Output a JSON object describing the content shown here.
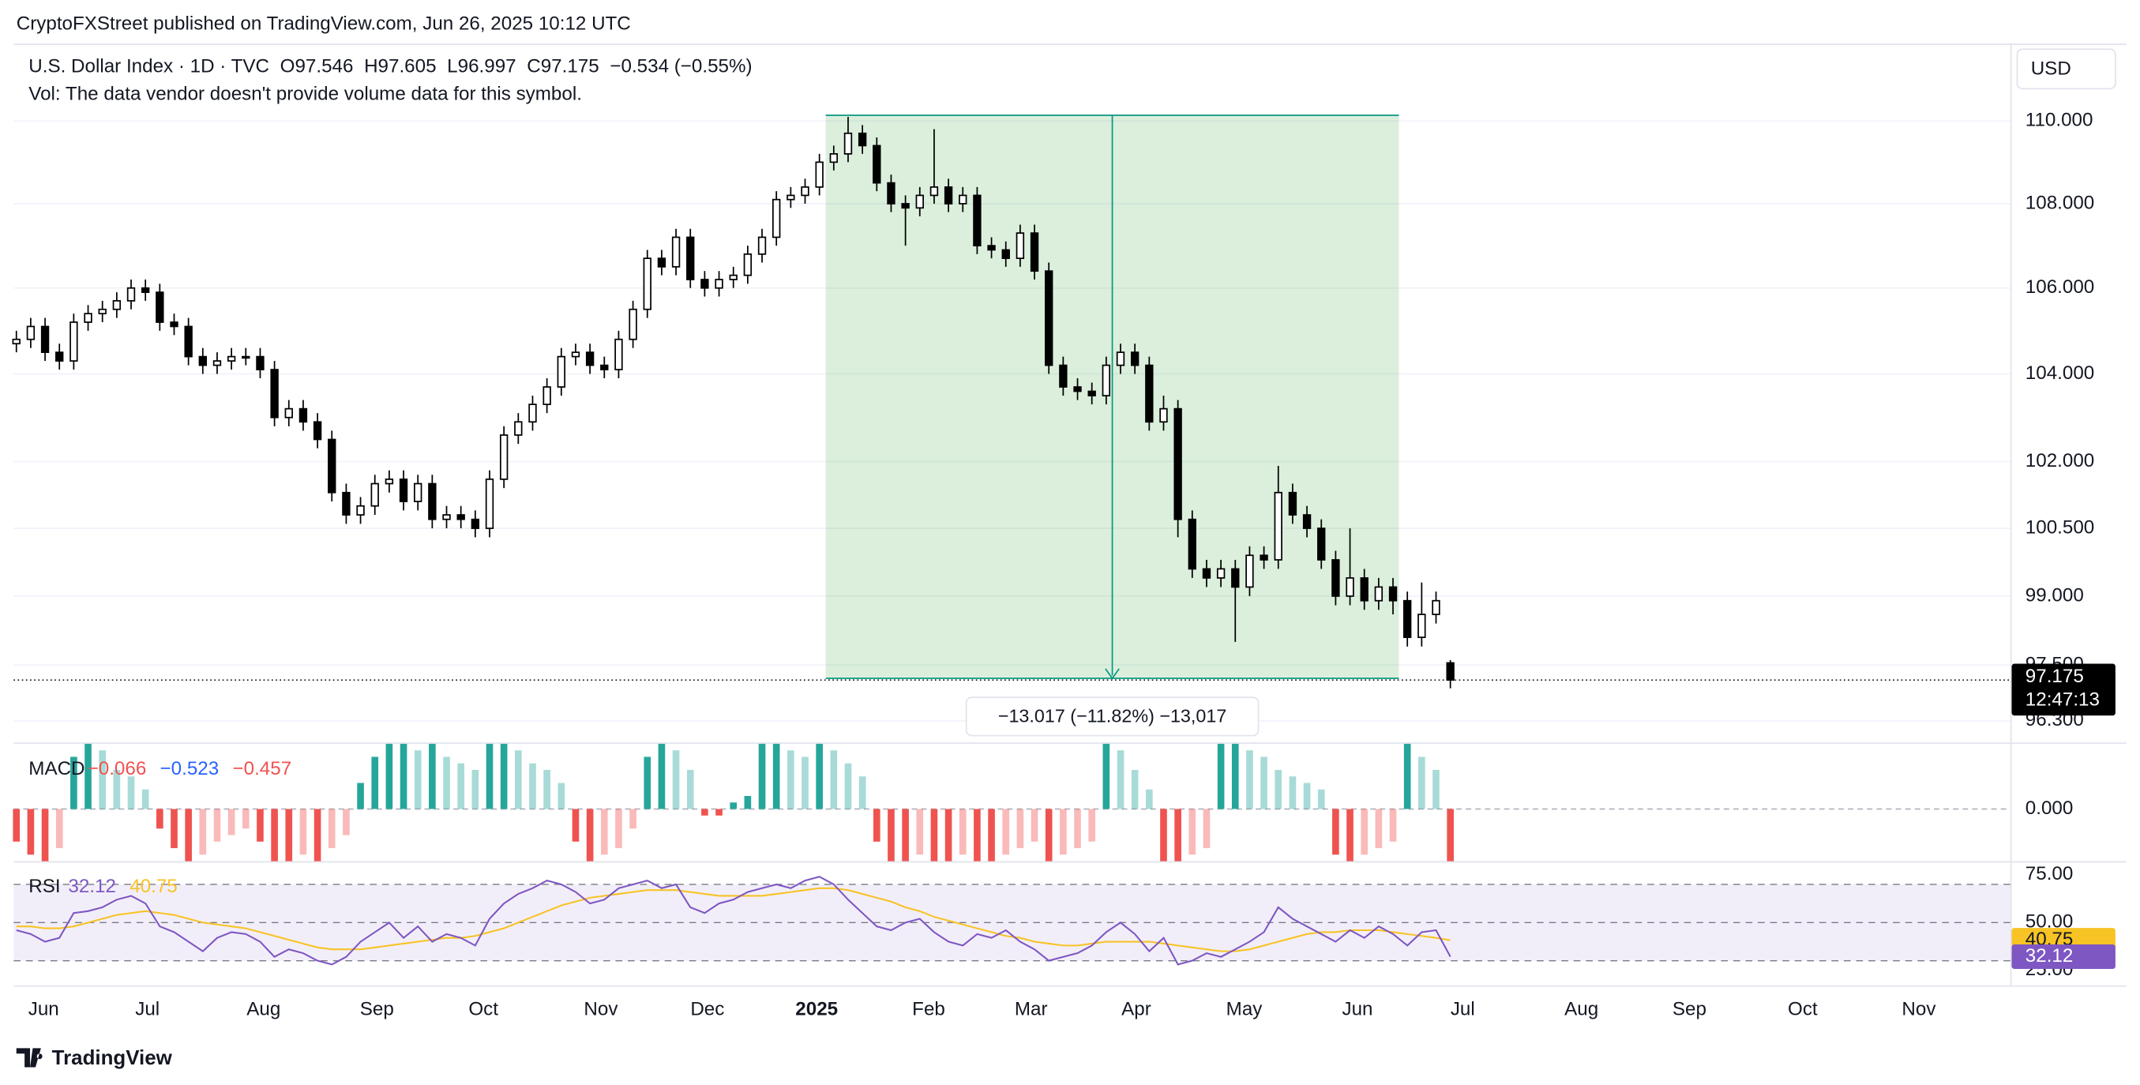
{
  "header": {
    "publisher": "CryptoFXStreet published on TradingView.com, Jun 26, 2025 10:12 UTC",
    "symbol": "U.S. Dollar Index · 1D · TVC",
    "ohlc_prefixes": [
      "O",
      "H",
      "L",
      "C"
    ],
    "change": "−0.534 (−0.55%)",
    "volume_note": "Vol: The data vendor doesn't provide volume data for this symbol.",
    "currency": "USD",
    "countdown": "12:47:13"
  },
  "chart_data": [
    {
      "type": "candlestick",
      "color": "#000000",
      "log_scale": true,
      "grid": true,
      "measure_label": "−13.017 (−11.82%) −13,017",
      "xlim": [
        -0.19,
        139.05
      ],
      "xticks": [
        {
          "value": 1.9,
          "label": "Jun"
        },
        {
          "value": 9.14,
          "label": "Jul"
        },
        {
          "value": 17.24,
          "label": "Aug"
        },
        {
          "value": 25.14,
          "label": "Sep"
        },
        {
          "value": 32.57,
          "label": "Oct"
        },
        {
          "value": 40.76,
          "label": "Nov"
        },
        {
          "value": 48.19,
          "label": "Dec"
        },
        {
          "value": 55.81,
          "label": "2025"
        },
        {
          "value": 63.62,
          "label": "Feb"
        },
        {
          "value": 70.76,
          "label": "Mar"
        },
        {
          "value": 78.1,
          "label": "Apr"
        },
        {
          "value": 85.62,
          "label": "May"
        },
        {
          "value": 93.52,
          "label": "Jun"
        },
        {
          "value": 100.86,
          "label": "Jul"
        },
        {
          "value": 109.14,
          "label": "Aug"
        },
        {
          "value": 116.67,
          "label": "Sep"
        },
        {
          "value": 124.57,
          "label": "Oct"
        },
        {
          "value": 132.67,
          "label": "Nov"
        }
      ],
      "ylim": [
        95.84,
        111.8
      ],
      "yticks": [
        {
          "value": 110,
          "label": "110.000"
        },
        {
          "value": 108,
          "label": "108.000"
        },
        {
          "value": 106,
          "label": "106.000"
        },
        {
          "value": 104,
          "label": "104.000"
        },
        {
          "value": 102,
          "label": "102.000"
        },
        {
          "value": 100.5,
          "label": "100.500"
        },
        {
          "value": 99,
          "label": "99.000"
        },
        {
          "value": 97.5,
          "label": "97.500"
        },
        {
          "value": 96.3,
          "label": "96.300"
        }
      ],
      "open": [
        104.7,
        104.8,
        105.1,
        104.5,
        104.3,
        105.2,
        105.4,
        105.5,
        105.7,
        106.0,
        105.9,
        105.2,
        105.1,
        104.4,
        104.2,
        104.3,
        104.4,
        104.4,
        104.1,
        103.0,
        103.2,
        102.9,
        102.5,
        101.3,
        100.8,
        101.0,
        101.5,
        101.6,
        101.1,
        101.5,
        100.7,
        100.8,
        100.7,
        100.5,
        101.6,
        102.6,
        102.9,
        103.3,
        103.7,
        104.4,
        104.5,
        104.2,
        104.1,
        104.8,
        105.5,
        106.7,
        106.5,
        107.2,
        106.2,
        106.0,
        106.2,
        106.3,
        106.8,
        107.2,
        108.1,
        108.2,
        108.4,
        109.0,
        109.2,
        109.7,
        109.4,
        108.5,
        108.0,
        107.9,
        108.2,
        108.4,
        108.0,
        108.2,
        107.0,
        106.9,
        106.7,
        107.3,
        106.4,
        104.2,
        103.7,
        103.6,
        103.5,
        104.2,
        104.5,
        104.2,
        102.9,
        103.2,
        100.7,
        99.6,
        99.4,
        99.6,
        99.2,
        99.9,
        99.8,
        101.3,
        100.8,
        100.5,
        99.8,
        99.0,
        99.4,
        98.9,
        99.2,
        98.9,
        98.1,
        98.6,
        97.546
      ],
      "high": [
        105.0,
        105.3,
        105.3,
        104.7,
        105.4,
        105.6,
        105.7,
        105.9,
        106.2,
        106.2,
        106.1,
        105.4,
        105.3,
        104.6,
        104.5,
        104.6,
        104.6,
        104.6,
        104.3,
        103.4,
        103.4,
        103.1,
        102.7,
        101.5,
        101.2,
        101.7,
        101.8,
        101.8,
        101.7,
        101.7,
        101.0,
        101.0,
        100.9,
        101.8,
        102.8,
        103.1,
        103.5,
        103.9,
        104.6,
        104.7,
        104.7,
        104.4,
        105.0,
        105.7,
        106.9,
        106.9,
        107.4,
        107.4,
        106.4,
        106.4,
        106.5,
        107.0,
        107.4,
        108.3,
        108.4,
        108.6,
        109.2,
        109.4,
        110.1,
        109.9,
        109.6,
        108.7,
        108.2,
        108.4,
        109.8,
        108.6,
        108.4,
        108.4,
        107.2,
        107.1,
        107.5,
        107.5,
        106.6,
        104.4,
        103.9,
        103.8,
        104.4,
        104.7,
        104.7,
        104.4,
        103.5,
        103.4,
        100.9,
        99.8,
        99.8,
        99.8,
        100.1,
        100.1,
        101.9,
        101.5,
        101.0,
        100.7,
        100.0,
        100.5,
        99.6,
        99.4,
        99.4,
        99.1,
        99.3,
        99.1,
        97.605
      ],
      "low": [
        104.5,
        104.6,
        104.3,
        104.1,
        104.1,
        105.0,
        105.2,
        105.3,
        105.5,
        105.7,
        105.0,
        104.9,
        104.2,
        104.0,
        104.0,
        104.1,
        104.2,
        103.9,
        102.8,
        102.8,
        102.7,
        102.3,
        101.1,
        100.6,
        100.6,
        100.8,
        101.3,
        100.9,
        100.9,
        100.5,
        100.5,
        100.5,
        100.3,
        100.3,
        101.4,
        102.4,
        102.7,
        103.1,
        103.5,
        104.2,
        104.0,
        103.9,
        103.9,
        104.6,
        105.3,
        106.3,
        106.3,
        106.0,
        105.8,
        105.8,
        106.0,
        106.1,
        106.6,
        107.0,
        107.9,
        108.0,
        108.2,
        108.8,
        109.0,
        109.2,
        108.3,
        107.8,
        107.0,
        107.7,
        108.0,
        107.8,
        107.8,
        106.8,
        106.7,
        106.5,
        106.5,
        106.2,
        104.0,
        103.5,
        103.4,
        103.3,
        103.3,
        104.0,
        104.0,
        102.7,
        102.7,
        100.3,
        99.4,
        99.2,
        99.2,
        98.0,
        99.0,
        99.6,
        99.6,
        100.6,
        100.3,
        99.6,
        98.8,
        98.8,
        98.7,
        98.7,
        98.6,
        97.9,
        97.9,
        98.4,
        96.997
      ],
      "close": [
        104.8,
        105.1,
        104.5,
        104.3,
        105.2,
        105.4,
        105.5,
        105.7,
        106.0,
        105.9,
        105.2,
        105.1,
        104.4,
        104.2,
        104.3,
        104.4,
        104.4,
        104.1,
        103.0,
        103.2,
        102.9,
        102.5,
        101.3,
        100.8,
        101.0,
        101.5,
        101.6,
        101.1,
        101.5,
        100.7,
        100.8,
        100.7,
        100.5,
        101.6,
        102.6,
        102.9,
        103.3,
        103.7,
        104.4,
        104.5,
        104.2,
        104.1,
        104.8,
        105.5,
        106.7,
        106.5,
        107.2,
        106.2,
        106.0,
        106.2,
        106.3,
        106.8,
        107.2,
        108.1,
        108.2,
        108.4,
        109.0,
        109.2,
        109.7,
        109.4,
        108.5,
        108.0,
        107.9,
        108.2,
        108.4,
        108.0,
        108.2,
        107.0,
        106.9,
        106.7,
        107.3,
        106.4,
        104.2,
        103.7,
        103.6,
        103.5,
        104.2,
        104.5,
        104.2,
        102.9,
        103.2,
        100.7,
        99.6,
        99.4,
        99.6,
        99.2,
        99.9,
        99.8,
        101.3,
        100.8,
        100.5,
        99.8,
        99.0,
        99.4,
        98.9,
        99.2,
        98.9,
        98.1,
        98.6,
        98.9,
        97.175
      ]
    },
    {
      "type": "histogram",
      "title": "MACD",
      "up_color": "#26a69a",
      "down_color": "#ef5350",
      "indicator_value_labels": [
        "−0.066",
        "−0.523",
        "−0.457"
      ],
      "indicator_colors": [
        "#ef5350",
        "#2962ff",
        "#ef5350"
      ],
      "ylim": [
        -0.08,
        0.1
      ],
      "yticks": [
        {
          "value": 0,
          "label": "0.000"
        }
      ],
      "values": [
        -0.05,
        -0.07,
        -0.08,
        -0.06,
        0.08,
        0.1,
        0.09,
        0.06,
        0.05,
        0.03,
        -0.03,
        -0.06,
        -0.08,
        -0.07,
        -0.05,
        -0.04,
        -0.03,
        -0.05,
        -0.08,
        -0.08,
        -0.07,
        -0.08,
        -0.06,
        -0.04,
        0.04,
        0.08,
        0.1,
        0.1,
        0.09,
        0.1,
        0.08,
        0.07,
        0.06,
        0.1,
        0.1,
        0.09,
        0.07,
        0.06,
        0.04,
        -0.05,
        -0.08,
        -0.07,
        -0.06,
        -0.03,
        0.08,
        0.1,
        0.09,
        0.06,
        -0.01,
        -0.01,
        0.01,
        0.02,
        0.1,
        0.1,
        0.09,
        0.08,
        0.1,
        0.09,
        0.07,
        0.05,
        -0.05,
        -0.08,
        -0.08,
        -0.07,
        -0.08,
        -0.08,
        -0.07,
        -0.08,
        -0.08,
        -0.07,
        -0.06,
        -0.05,
        -0.08,
        -0.07,
        -0.06,
        -0.05,
        0.1,
        0.09,
        0.06,
        0.03,
        -0.08,
        -0.08,
        -0.07,
        -0.06,
        0.1,
        0.1,
        0.09,
        0.08,
        0.06,
        0.05,
        0.04,
        0.03,
        -0.07,
        -0.08,
        -0.07,
        -0.06,
        -0.05,
        0.1,
        0.08,
        0.06,
        -0.08
      ]
    },
    {
      "type": "line",
      "title": "RSI",
      "ylim": [
        17.1,
        80.7
      ],
      "yticks": [
        {
          "value": 75,
          "label": "75.00"
        },
        {
          "value": 50,
          "label": "50.00"
        },
        {
          "value": 25,
          "label": "25.00"
        }
      ],
      "levels": [
        70,
        50,
        30
      ],
      "band_color": "#7e57c2",
      "series": [
        {
          "color": "#7e57c2",
          "values": [
            46,
            44,
            40,
            42,
            55,
            56,
            58,
            62,
            64,
            60,
            48,
            45,
            40,
            35,
            42,
            45,
            44,
            40,
            32,
            36,
            34,
            30,
            28,
            32,
            40,
            45,
            50,
            42,
            48,
            40,
            44,
            42,
            38,
            52,
            60,
            65,
            68,
            72,
            70,
            66,
            60,
            62,
            68,
            70,
            72,
            68,
            70,
            58,
            55,
            60,
            62,
            66,
            68,
            70,
            68,
            72,
            74,
            70,
            62,
            55,
            48,
            46,
            50,
            52,
            45,
            40,
            38,
            44,
            42,
            46,
            40,
            36,
            30,
            32,
            34,
            38,
            45,
            50,
            44,
            35,
            42,
            28,
            30,
            34,
            32,
            36,
            40,
            45,
            58,
            52,
            48,
            44,
            40,
            46,
            42,
            48,
            44,
            38,
            45,
            46,
            32.12
          ]
        },
        {
          "color": "#f7c325",
          "values": [
            48,
            48,
            47,
            47,
            48,
            50,
            52,
            54,
            55,
            56,
            55,
            54,
            52,
            50,
            49,
            48,
            47,
            45,
            43,
            41,
            39,
            37,
            36,
            36,
            36,
            37,
            38,
            39,
            40,
            41,
            42,
            42,
            43,
            45,
            47,
            50,
            53,
            56,
            59,
            61,
            63,
            64,
            65,
            66,
            67,
            67,
            67,
            66,
            65,
            64,
            64,
            64,
            64,
            65,
            66,
            67,
            68,
            68,
            67,
            65,
            63,
            61,
            58,
            56,
            53,
            51,
            49,
            47,
            45,
            43,
            42,
            40,
            39,
            38,
            38,
            39,
            40,
            40,
            40,
            40,
            39,
            38,
            37,
            36,
            35,
            35,
            36,
            38,
            40,
            42,
            44,
            45,
            45,
            46,
            46,
            46,
            45,
            44,
            43,
            42,
            40.75
          ]
        }
      ]
    }
  ],
  "footer": {
    "brand": "TradingView"
  }
}
